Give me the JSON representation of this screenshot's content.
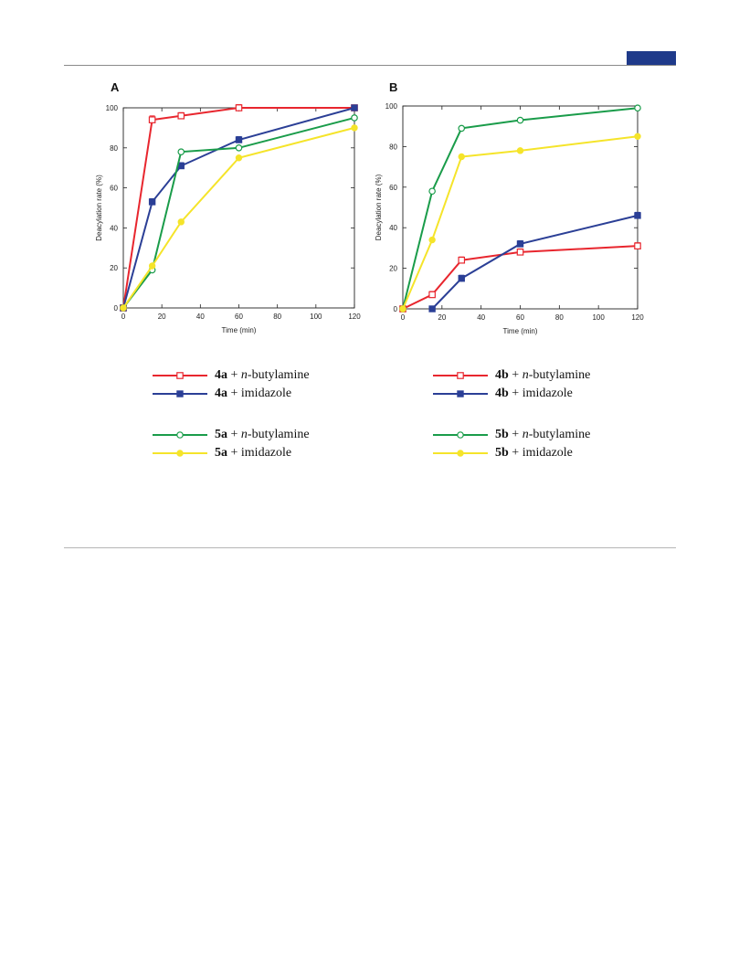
{
  "page": {
    "header_accent_color": "#1f3a8a"
  },
  "chart_data": [
    {
      "type": "line",
      "panel_label": "A",
      "xlabel": "Time (min)",
      "ylabel": "Deacylation rate (%)",
      "xlim": [
        0,
        120
      ],
      "ylim": [
        0,
        100
      ],
      "xticks": [
        0,
        20,
        40,
        60,
        80,
        100,
        120
      ],
      "yticks": [
        0,
        20,
        40,
        60,
        80,
        100
      ],
      "grid": false,
      "series": [
        {
          "compound": "4a",
          "reagent_prefix": "+ ",
          "reagent_italic": "n",
          "reagent_suffix": "-butylamine",
          "color": "#e8262e",
          "marker": "open-square",
          "x": [
            0,
            15,
            30,
            60,
            120
          ],
          "y": [
            0,
            94,
            96,
            100,
            100
          ],
          "error": [
            0,
            1.5,
            1,
            1,
            0
          ]
        },
        {
          "compound": "4a",
          "reagent_prefix": "+ imidazole",
          "reagent_italic": "",
          "reagent_suffix": "",
          "color": "#2b3f96",
          "marker": "filled-square",
          "x": [
            0,
            15,
            30,
            60,
            120
          ],
          "y": [
            0,
            53,
            71,
            84,
            100
          ],
          "error": [
            0,
            1,
            1,
            1,
            0
          ]
        },
        {
          "compound": "5a",
          "reagent_prefix": "+ ",
          "reagent_italic": "n",
          "reagent_suffix": "-butylamine",
          "color": "#1a9c4a",
          "marker": "open-circle",
          "x": [
            0,
            15,
            30,
            60,
            120
          ],
          "y": [
            0,
            19,
            78,
            80,
            95
          ],
          "error": [
            0,
            0,
            0,
            0,
            0
          ]
        },
        {
          "compound": "5a",
          "reagent_prefix": "+ imidazole",
          "reagent_italic": "",
          "reagent_suffix": "",
          "color": "#f5e42a",
          "marker": "filled-circle",
          "x": [
            0,
            15,
            30,
            60,
            120
          ],
          "y": [
            0,
            21,
            43,
            75,
            90
          ],
          "error": [
            0,
            0,
            0,
            0,
            0
          ]
        }
      ]
    },
    {
      "type": "line",
      "panel_label": "B",
      "xlabel": "Time (min)",
      "ylabel": "Deacylation rate (%)",
      "xlim": [
        0,
        120
      ],
      "ylim": [
        0,
        100
      ],
      "xticks": [
        0,
        20,
        40,
        60,
        80,
        100,
        120
      ],
      "yticks": [
        0,
        20,
        40,
        60,
        80,
        100
      ],
      "grid": false,
      "series": [
        {
          "compound": "4b",
          "reagent_prefix": "+ ",
          "reagent_italic": "n",
          "reagent_suffix": "-butylamine",
          "color": "#e8262e",
          "marker": "open-square",
          "x": [
            0,
            15,
            30,
            60,
            120
          ],
          "y": [
            0,
            7,
            24,
            28,
            31
          ],
          "error": [
            0,
            1,
            1,
            1,
            1
          ]
        },
        {
          "compound": "4b",
          "reagent_prefix": "+ imidazole",
          "reagent_italic": "",
          "reagent_suffix": "",
          "color": "#2b3f96",
          "marker": "filled-square",
          "x": [
            15,
            30,
            60,
            120
          ],
          "y": [
            0,
            15,
            32,
            46
          ],
          "error": [
            0,
            1,
            1,
            1
          ]
        },
        {
          "compound": "5b",
          "reagent_prefix": "+ ",
          "reagent_italic": "n",
          "reagent_suffix": "-butylamine",
          "color": "#1a9c4a",
          "marker": "open-circle",
          "x": [
            0,
            15,
            30,
            60,
            120
          ],
          "y": [
            0,
            58,
            89,
            93,
            99
          ],
          "error": [
            0,
            0,
            0,
            0,
            0
          ]
        },
        {
          "compound": "5b",
          "reagent_prefix": "+ imidazole",
          "reagent_italic": "",
          "reagent_suffix": "",
          "color": "#f5e42a",
          "marker": "filled-circle",
          "x": [
            0,
            15,
            30,
            60,
            120
          ],
          "y": [
            0,
            34,
            75,
            78,
            85
          ],
          "error": [
            0,
            0,
            0,
            0,
            0
          ]
        }
      ]
    }
  ]
}
